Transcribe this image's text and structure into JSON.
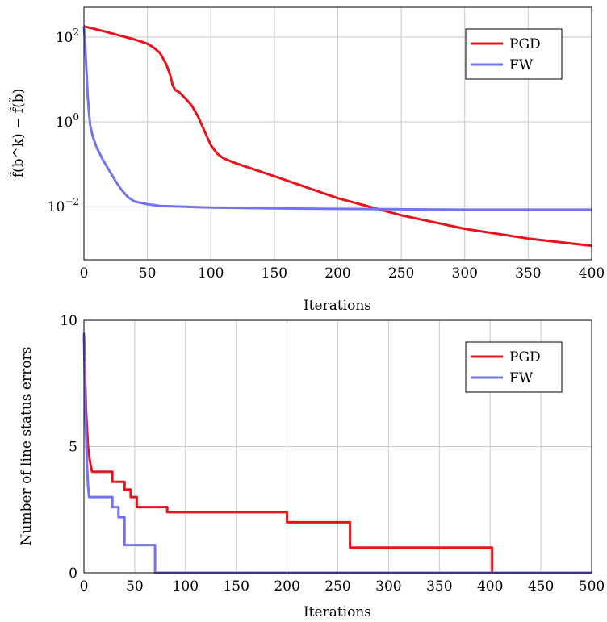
{
  "chart_data": [
    {
      "type": "line",
      "xlabel": "Iterations",
      "ylabel": "f̃(b^k) − f̃(b̃)",
      "yscale": "log",
      "xlim": [
        0,
        400
      ],
      "ylim_log10": [
        -3.25,
        2.7
      ],
      "xticks": [
        0,
        50,
        100,
        150,
        200,
        250,
        300,
        350,
        400
      ],
      "xtick_labels": [
        "0",
        "50",
        "100",
        "150",
        "200",
        "250",
        "300",
        "350",
        "400"
      ],
      "yticks_log10": [
        2,
        0,
        -2
      ],
      "ytick_labels": [
        "10",
        "10",
        "10"
      ],
      "ytick_exponents": [
        "2",
        "0",
        "−2"
      ],
      "grid": true,
      "legend_position": "top-right",
      "series": [
        {
          "name": "PGD",
          "color": "#e8141c",
          "x": [
            0,
            10,
            20,
            30,
            40,
            50,
            55,
            60,
            65,
            68,
            70,
            72,
            75,
            80,
            85,
            90,
            95,
            100,
            105,
            110,
            120,
            150,
            200,
            250,
            300,
            350,
            400
          ],
          "y_log10": [
            2.25,
            2.18,
            2.1,
            2.02,
            1.94,
            1.84,
            1.75,
            1.62,
            1.35,
            1.1,
            0.85,
            0.75,
            0.7,
            0.55,
            0.38,
            0.12,
            -0.22,
            -0.55,
            -0.75,
            -0.86,
            -0.98,
            -1.28,
            -1.8,
            -2.2,
            -2.52,
            -2.75,
            -2.92
          ]
        },
        {
          "name": "FW",
          "color": "#7373f2",
          "x": [
            0,
            1,
            2,
            3,
            4,
            5,
            7,
            10,
            15,
            20,
            25,
            30,
            35,
            40,
            50,
            60,
            80,
            100,
            150,
            200,
            250,
            300,
            350,
            400
          ],
          "y_log10": [
            2.25,
            1.8,
            1.2,
            0.6,
            0.2,
            -0.1,
            -0.35,
            -0.6,
            -0.9,
            -1.15,
            -1.4,
            -1.62,
            -1.78,
            -1.88,
            -1.94,
            -1.98,
            -2.0,
            -2.02,
            -2.04,
            -2.05,
            -2.06,
            -2.07,
            -2.07,
            -2.07
          ]
        }
      ]
    },
    {
      "type": "line",
      "xlabel": "Iterations",
      "ylabel": "Number of line status errors",
      "xlim": [
        0,
        500
      ],
      "ylim": [
        0,
        10
      ],
      "xticks": [
        0,
        50,
        100,
        150,
        200,
        250,
        300,
        350,
        400,
        450,
        500
      ],
      "xtick_labels": [
        "0",
        "50",
        "100",
        "150",
        "200",
        "250",
        "300",
        "350",
        "400",
        "450",
        "500"
      ],
      "yticks": [
        0,
        5,
        10
      ],
      "ytick_labels": [
        "0",
        "5",
        "10"
      ],
      "grid": true,
      "legend_position": "top-right",
      "series": [
        {
          "name": "PGD",
          "color": "#e8141c",
          "x": [
            0,
            1,
            2,
            4,
            6,
            8,
            28,
            28,
            40,
            40,
            46,
            46,
            52,
            52,
            82,
            82,
            200,
            200,
            262,
            262,
            402,
            402,
            500
          ],
          "y": [
            9.5,
            8.0,
            6.5,
            5.0,
            4.4,
            4.0,
            4.0,
            3.6,
            3.6,
            3.3,
            3.3,
            3.0,
            3.0,
            2.6,
            2.6,
            2.4,
            2.4,
            2.0,
            2.0,
            1.0,
            1.0,
            0.0,
            0.0
          ]
        },
        {
          "name": "FW",
          "color": "#7373f2",
          "x": [
            0,
            1,
            2,
            3,
            4,
            5,
            28,
            28,
            34,
            34,
            40,
            40,
            70,
            70,
            500
          ],
          "y": [
            9.5,
            7.0,
            5.5,
            4.3,
            3.5,
            3.0,
            3.0,
            2.6,
            2.6,
            2.2,
            2.2,
            1.1,
            1.1,
            0.0,
            0.0
          ]
        }
      ]
    }
  ]
}
